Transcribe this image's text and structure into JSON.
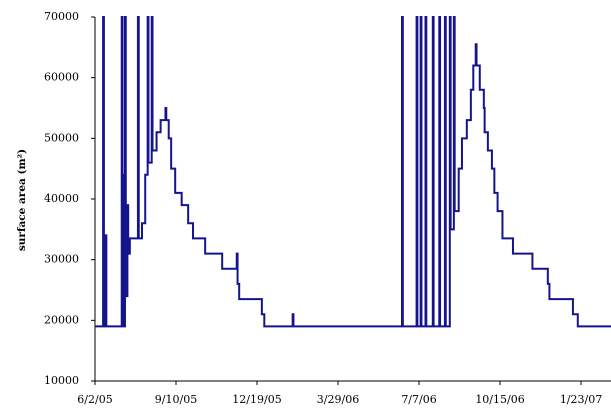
{
  "chart_data": {
    "type": "line",
    "step": "after",
    "ylabel": "surface area (m²)",
    "color": "#14148c",
    "xlim": [
      "2005-06-02",
      "2007-03-01"
    ],
    "xticks": [
      {
        "value": "2005-06-02",
        "label": "6/2/05"
      },
      {
        "value": "2005-09-10",
        "label": "9/10/05"
      },
      {
        "value": "2005-12-19",
        "label": "12/19/05"
      },
      {
        "value": "2006-03-29",
        "label": "3/29/06"
      },
      {
        "value": "2006-07-07",
        "label": "7/7/06"
      },
      {
        "value": "2006-10-15",
        "label": "10/15/06"
      },
      {
        "value": "2007-01-23",
        "label": "1/23/07"
      }
    ],
    "ylim": [
      10000,
      70000
    ],
    "yticks": [
      10000,
      20000,
      30000,
      40000,
      50000,
      60000,
      70000
    ],
    "grid": false,
    "x": [
      "2005-06-02",
      "2005-06-12",
      "2005-06-13",
      "2005-06-15",
      "2005-06-16",
      "2005-07-05",
      "2005-07-06",
      "2005-07-07",
      "2005-07-09",
      "2005-07-10",
      "2005-07-12",
      "2005-07-13",
      "2005-07-15",
      "2005-07-25",
      "2005-07-26",
      "2005-07-30",
      "2005-08-03",
      "2005-08-06",
      "2005-08-07",
      "2005-08-11",
      "2005-08-12",
      "2005-08-17",
      "2005-08-22",
      "2005-08-28",
      "2005-08-29",
      "2005-09-01",
      "2005-09-04",
      "2005-09-09",
      "2005-09-17",
      "2005-09-25",
      "2005-10-01",
      "2005-10-16",
      "2005-11-06",
      "2005-11-24",
      "2005-11-25",
      "2005-11-27",
      "2005-12-25",
      "2005-12-28",
      "2006-02-01",
      "2006-02-02",
      "2006-06-16",
      "2006-06-17",
      "2006-07-04",
      "2006-07-05",
      "2006-07-09",
      "2006-07-10",
      "2006-07-15",
      "2006-07-16",
      "2006-07-24",
      "2006-07-25",
      "2006-08-01",
      "2006-08-02",
      "2006-08-08",
      "2006-08-09",
      "2006-08-14",
      "2006-08-15",
      "2006-08-19",
      "2006-08-20",
      "2006-08-25",
      "2006-08-29",
      "2006-09-04",
      "2006-09-09",
      "2006-09-12",
      "2006-09-15",
      "2006-09-16",
      "2006-09-20",
      "2006-09-25",
      "2006-09-26",
      "2006-09-30",
      "2006-10-05",
      "2006-10-08",
      "2006-10-12",
      "2006-10-18",
      "2006-10-31",
      "2006-11-24",
      "2006-12-13",
      "2006-12-15",
      "2007-01-13",
      "2007-01-19",
      "2007-03-01"
    ],
    "values": [
      19000,
      70000,
      19000,
      34000,
      19000,
      70000,
      44000,
      19000,
      70000,
      24000,
      39000,
      31000,
      33500,
      70000,
      33500,
      36000,
      44000,
      70000,
      46000,
      70000,
      48000,
      51000,
      53000,
      55000,
      53000,
      50000,
      45000,
      41000,
      39000,
      36000,
      33500,
      31000,
      28500,
      31000,
      26000,
      23500,
      21000,
      19000,
      21000,
      19000,
      70000,
      19000,
      70000,
      19000,
      70000,
      19000,
      70000,
      19000,
      70000,
      19000,
      70000,
      19000,
      70000,
      19000,
      70000,
      35000,
      70000,
      38000,
      45000,
      50000,
      53000,
      58000,
      62000,
      65500,
      62000,
      58000,
      55000,
      51000,
      48000,
      45000,
      41000,
      38000,
      33500,
      31000,
      28500,
      26000,
      23500,
      21000,
      19000,
      19000
    ]
  }
}
